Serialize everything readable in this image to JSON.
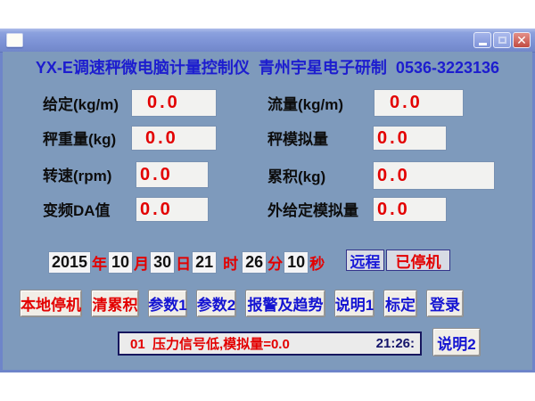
{
  "window": {
    "controls": {
      "minimize_tooltip": "minimize",
      "maximize_tooltip": "maximize",
      "close_glyph": "✕"
    }
  },
  "header": {
    "title": "YX-E调速秤微电脑计量控制仪  青州宇星电子研制  0536-3223136"
  },
  "fields": [
    {
      "label": "给定(kg/m)",
      "value": "0.0"
    },
    {
      "label": "流量(kg/m)",
      "value": "0.0"
    },
    {
      "label": "秤重量(kg)",
      "value": "0.0"
    },
    {
      "label": "秤模拟量",
      "value": "0.0"
    },
    {
      "label": "转速(rpm)",
      "value": "0.0"
    },
    {
      "label": "累积(kg)",
      "value": "0.0"
    },
    {
      "label": "变频DA值",
      "value": "0.0"
    },
    {
      "label": "外给定模拟量",
      "value": "0.0"
    }
  ],
  "datetime": {
    "segments": [
      {
        "value": "2015",
        "unit": "年"
      },
      {
        "value": "10",
        "unit": "月"
      },
      {
        "value": "30",
        "unit": "日"
      },
      {
        "value": "21",
        "unit": "时"
      },
      {
        "value": "26",
        "unit": "分"
      },
      {
        "value": "10",
        "unit": "秒"
      }
    ]
  },
  "mode": {
    "remote_label": "远程",
    "state_label": "已停机"
  },
  "buttons": [
    {
      "label": "本地停机"
    },
    {
      "label": "清累积"
    },
    {
      "label": "参数1"
    },
    {
      "label": "参数2"
    },
    {
      "label": "报警及趋势"
    },
    {
      "label": "说明1"
    },
    {
      "label": "标定"
    },
    {
      "label": "登录"
    }
  ],
  "status_bar": {
    "message": "01  压力信号低,模拟量=0.0",
    "time": "21:26:",
    "help_button_label": "说明2"
  },
  "colors": {
    "client_bg": "#7e9abc",
    "titlebar_blue": "#7e94d6",
    "value_red": "#e30000",
    "text_blue": "#1414d2",
    "box_gray": "#f2f2f0"
  }
}
